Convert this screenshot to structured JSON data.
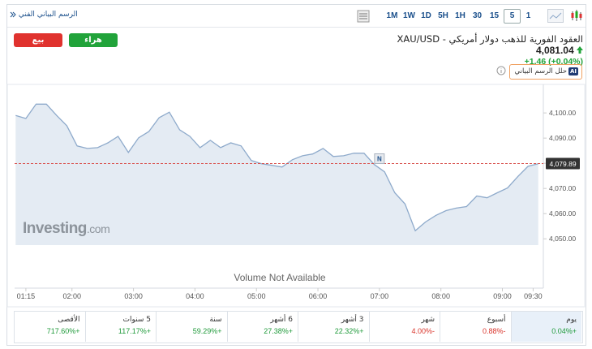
{
  "toolbar": {
    "chart_link": "الرسم البياني الفني",
    "intervals": [
      "1M",
      "1W",
      "1D",
      "5H",
      "1H",
      "30",
      "15",
      "5",
      "1"
    ],
    "selected_interval": "5"
  },
  "header": {
    "sell": "بيع",
    "buy": "هراء",
    "title": "XAU/USD - العقود الفورية للذهب دولار أمريكي",
    "price": "4,081.04",
    "change": "+1.46",
    "change_pct": "(+0.04%)",
    "analyze": "حلل الرسم البياني",
    "ai_badge": "AI"
  },
  "chart_data": {
    "type": "area",
    "color": "#8eaacb",
    "fill": "#e4ebf3",
    "x": [
      "01:05",
      "01:15",
      "01:25",
      "01:35",
      "01:45",
      "01:55",
      "02:05",
      "02:15",
      "02:25",
      "02:35",
      "02:45",
      "02:55",
      "03:05",
      "03:15",
      "03:25",
      "03:35",
      "03:45",
      "03:55",
      "04:05",
      "04:15",
      "04:25",
      "04:35",
      "04:45",
      "04:55",
      "05:05",
      "05:15",
      "05:25",
      "05:35",
      "05:45",
      "05:55",
      "06:05",
      "06:15",
      "06:25",
      "06:35",
      "06:45",
      "06:55",
      "07:05",
      "07:15",
      "07:25",
      "07:35",
      "07:45",
      "07:55",
      "08:05",
      "08:15",
      "08:25",
      "08:35",
      "08:45",
      "08:55",
      "09:05",
      "09:15",
      "09:25",
      "09:35"
    ],
    "values": [
      4099.0,
      4097.8,
      4103.5,
      4103.5,
      4099.0,
      4094.9,
      4086.9,
      4085.9,
      4086.2,
      4088.1,
      4090.7,
      4084.3,
      4090.1,
      4092.6,
      4098.1,
      4100.3,
      4093.3,
      4090.7,
      4086.2,
      4089.1,
      4086.2,
      4088.1,
      4086.9,
      4081.1,
      4079.8,
      4079.2,
      4078.5,
      4081.4,
      4083.0,
      4083.7,
      4085.9,
      4082.7,
      4083.0,
      4084.0,
      4084.0,
      4079.5,
      4076.6,
      4068.3,
      4063.8,
      4053.2,
      4056.7,
      4059.3,
      4061.2,
      4062.2,
      4062.8,
      4067.0,
      4066.3,
      4068.3,
      4070.2,
      4074.7,
      4078.8,
      4079.8
    ],
    "xlim": [
      "01:04",
      "09:36"
    ],
    "xticks": [
      "01:15",
      "02:00",
      "03:00",
      "04:00",
      "05:00",
      "06:00",
      "07:00",
      "08:00",
      "09:00",
      "09:30"
    ],
    "ylim": [
      4047.5,
      4111
    ],
    "yticks": [
      {
        "value": 4050,
        "label": "4,050.00"
      },
      {
        "value": 4060,
        "label": "4,060.00"
      },
      {
        "value": 4070,
        "label": "4,070.00"
      },
      {
        "value": 4080,
        "label": "4,080.00"
      },
      {
        "value": 4090,
        "label": "4,090.00"
      },
      {
        "value": 4100,
        "label": "4,100.00"
      }
    ],
    "current_value": {
      "value": 4079.89,
      "label": "4,079.89"
    },
    "event_marker": {
      "x": "07:00",
      "label": "N"
    },
    "watermark": "Investing",
    "watermark_suffix": ".com",
    "note": "Volume Not Available"
  },
  "performance": [
    {
      "period": "يوم",
      "change": "+0.04%"
    },
    {
      "period": "أسبوع",
      "change": "-0.88%"
    },
    {
      "period": "شهر",
      "change": "-4.00%"
    },
    {
      "period": "3 أشهر",
      "change": "+22.32%"
    },
    {
      "period": "6 أشهر",
      "change": "+27.38%"
    },
    {
      "period": "سنة",
      "change": "+59.29%"
    },
    {
      "period": "5 سنوات",
      "change": "+117.17%"
    },
    {
      "period": "الأقصى",
      "change": "+717.60%"
    }
  ]
}
